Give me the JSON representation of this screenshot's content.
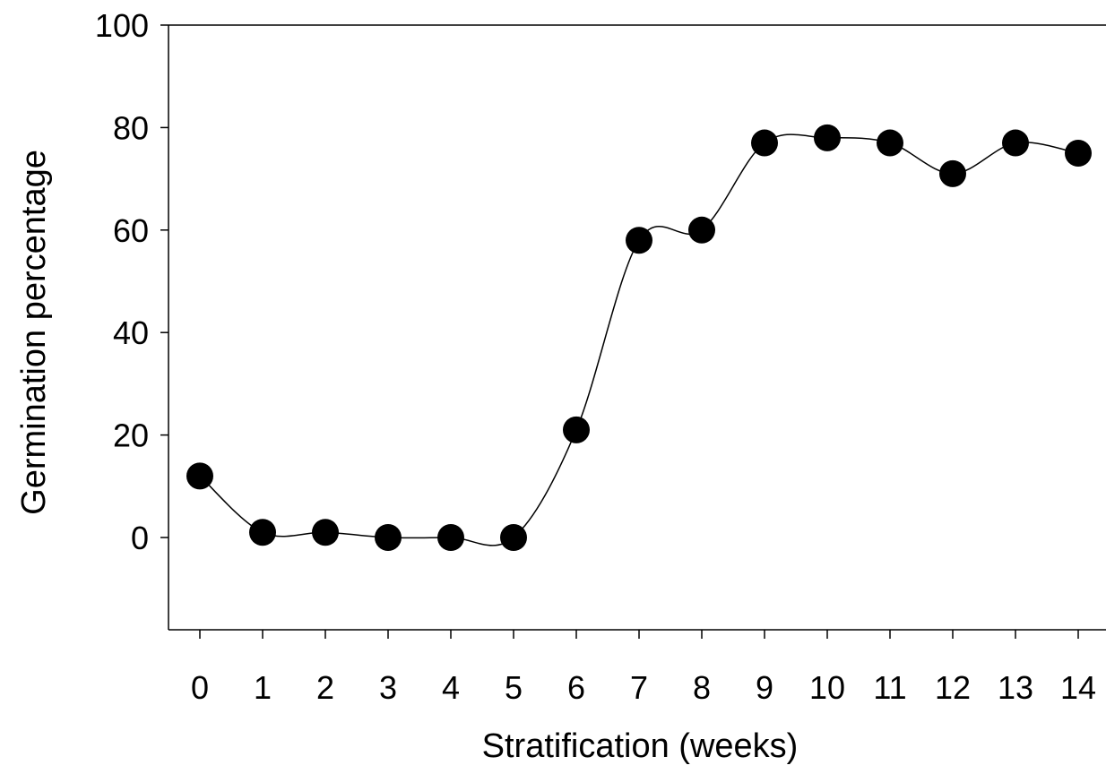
{
  "chart_data": {
    "type": "line",
    "title": "",
    "xlabel": "Stratification (weeks)",
    "ylabel": "Germination percentage",
    "x": [
      0,
      1,
      2,
      3,
      4,
      5,
      6,
      7,
      8,
      9,
      10,
      11,
      12,
      13,
      14
    ],
    "series": [
      {
        "values": [
          12,
          1,
          1,
          0,
          0,
          0,
          21,
          58,
          60,
          77,
          78,
          77,
          71,
          77,
          75
        ]
      }
    ],
    "xlim": [
      -0.5,
      14.3
    ],
    "ylim": [
      -18,
      100
    ],
    "yticks": [
      0,
      20,
      40,
      60,
      80,
      100
    ],
    "xticks": [
      0,
      1,
      2,
      3,
      4,
      5,
      6,
      7,
      8,
      9,
      10,
      11,
      12,
      13,
      14
    ],
    "grid": false,
    "legend": "none",
    "colors": {
      "line": "#000000",
      "marker": "#000000",
      "axis": "#000000"
    }
  }
}
